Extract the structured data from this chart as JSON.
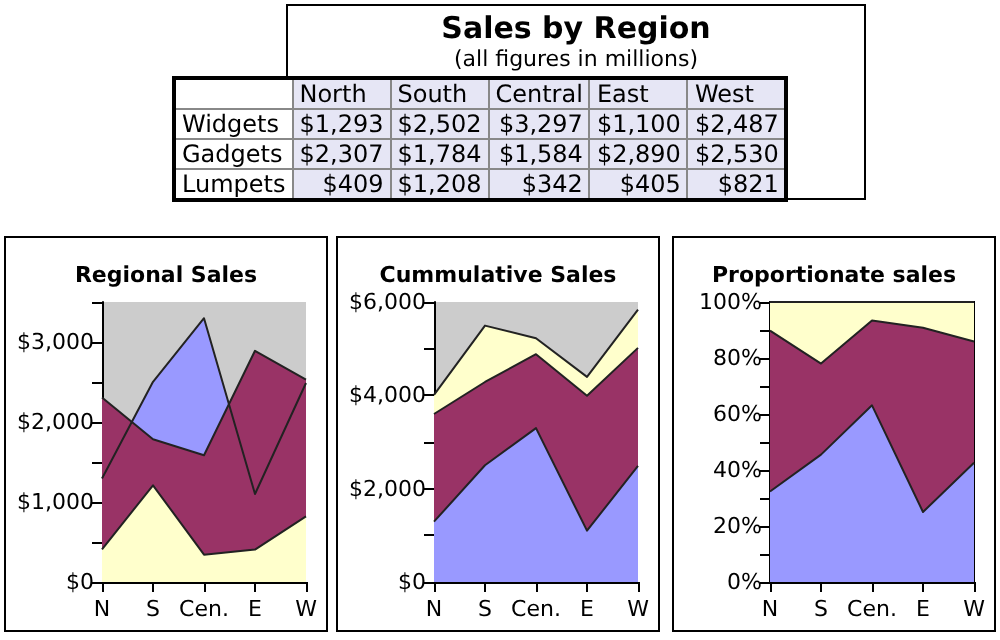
{
  "chart_data": [
    {
      "type": "other",
      "title": "Sales by Region",
      "subtitle": "(all figures in millions)",
      "categories": [
        "North",
        "South",
        "Central",
        "East",
        "West"
      ],
      "y_categories": [
        "Widgets",
        "Gadgets",
        "Lumpets"
      ],
      "cell_labels": [
        [
          "$1,293",
          "$2,502",
          "$3,297",
          "$1,100",
          "$2,487"
        ],
        [
          "$2,307",
          "$1,784",
          "$1,584",
          "$2,890",
          "$2,530"
        ],
        [
          "$409",
          "$1,208",
          "$342",
          "$405",
          "$821"
        ]
      ]
    },
    {
      "type": "area",
      "title": "Regional Sales",
      "categories": [
        "N",
        "S",
        "Cen.",
        "E",
        "W"
      ],
      "ylim": [
        0,
        3500
      ],
      "yticks": [
        {
          "value": 0,
          "label": "$0"
        },
        {
          "value": 500,
          "label": null
        },
        {
          "value": 1000,
          "label": "$1,000"
        },
        {
          "value": 1500,
          "label": null
        },
        {
          "value": 2000,
          "label": "$2,000"
        },
        {
          "value": 2500,
          "label": null
        },
        {
          "value": 3000,
          "label": "$3,000"
        },
        {
          "value": 3500,
          "label": null
        }
      ],
      "series": [
        {
          "color": "#9999ff",
          "values": [
            1293,
            2502,
            3297,
            1100,
            2487
          ]
        },
        {
          "color": "#993366",
          "values": [
            2307,
            1784,
            1584,
            2890,
            2530
          ]
        },
        {
          "color": "#ffffcc",
          "values": [
            409,
            1208,
            342,
            405,
            821
          ]
        }
      ]
    },
    {
      "type": "area",
      "title": "Cummulative Sales",
      "stacked": true,
      "categories": [
        "N",
        "S",
        "Cen.",
        "E",
        "W"
      ],
      "ylim": [
        0,
        6000
      ],
      "yticks": [
        {
          "value": 0,
          "label": "$0"
        },
        {
          "value": 1000,
          "label": null
        },
        {
          "value": 2000,
          "label": "$2,000"
        },
        {
          "value": 3000,
          "label": null
        },
        {
          "value": 4000,
          "label": "$4,000"
        },
        {
          "value": 5000,
          "label": null
        },
        {
          "value": 6000,
          "label": "$6,000"
        }
      ],
      "series": [
        {
          "color": "#9999ff",
          "values": [
            1293,
            2502,
            3297,
            1100,
            2487
          ]
        },
        {
          "color": "#993366",
          "values": [
            2307,
            1784,
            1584,
            2890,
            2530
          ]
        },
        {
          "color": "#ffffcc",
          "values": [
            409,
            1208,
            342,
            405,
            821
          ]
        }
      ]
    },
    {
      "type": "area",
      "title": "Proportionate sales",
      "stacked": true,
      "categories": [
        "N",
        "S",
        "Cen.",
        "E",
        "W"
      ],
      "ylim": [
        0,
        100
      ],
      "yticks": [
        {
          "value": 0,
          "label": "0%"
        },
        {
          "value": 10,
          "label": null
        },
        {
          "value": 20,
          "label": "20%"
        },
        {
          "value": 30,
          "label": null
        },
        {
          "value": 40,
          "label": "40%"
        },
        {
          "value": 50,
          "label": null
        },
        {
          "value": 60,
          "label": "60%"
        },
        {
          "value": 70,
          "label": null
        },
        {
          "value": 80,
          "label": "80%"
        },
        {
          "value": 90,
          "label": null
        },
        {
          "value": 100,
          "label": "100%"
        }
      ],
      "series": [
        {
          "color": "#9999ff",
          "values": [
            32.3,
            45.5,
            63.1,
            25.0,
            42.6
          ]
        },
        {
          "color": "#993366",
          "values": [
            57.5,
            32.5,
            30.3,
            65.8,
            43.3
          ]
        },
        {
          "color": "#ffffcc",
          "values": [
            10.2,
            22.0,
            6.6,
            9.2,
            14.1
          ]
        }
      ]
    }
  ]
}
